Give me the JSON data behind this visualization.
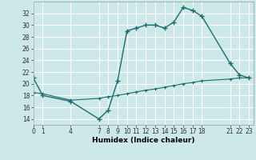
{
  "xlabel": "Humidex (Indice chaleur)",
  "bg_color": "#cce8e8",
  "grid_color": "#ffffff",
  "line_color": "#1a6e6a",
  "line1_x": [
    0,
    1,
    4,
    7,
    8,
    9,
    10,
    11,
    12,
    13,
    14,
    15,
    16,
    17,
    18,
    21,
    22,
    23
  ],
  "line1_y": [
    21,
    18,
    17,
    14,
    15.5,
    20.5,
    29,
    29.5,
    30,
    30,
    29.5,
    30.5,
    33,
    32.5,
    31.5,
    23.5,
    21.5,
    21
  ],
  "line2_x": [
    0,
    1,
    4,
    7,
    8,
    9,
    10,
    11,
    12,
    13,
    14,
    15,
    16,
    17,
    18,
    21,
    22,
    23
  ],
  "line2_y": [
    18.5,
    18.3,
    17.2,
    17.5,
    17.8,
    18.0,
    18.3,
    18.6,
    18.9,
    19.1,
    19.4,
    19.7,
    20.0,
    20.2,
    20.5,
    20.8,
    21.0,
    21.0
  ],
  "xticks": [
    0,
    1,
    4,
    7,
    8,
    9,
    10,
    11,
    12,
    13,
    14,
    15,
    16,
    17,
    18,
    21,
    22,
    23
  ],
  "xlim": [
    0,
    23.5
  ],
  "ylim": [
    13,
    34
  ],
  "yticks": [
    14,
    16,
    18,
    20,
    22,
    24,
    26,
    28,
    30,
    32
  ],
  "xlabel_fontsize": 6.5,
  "tick_fontsize": 5.5
}
